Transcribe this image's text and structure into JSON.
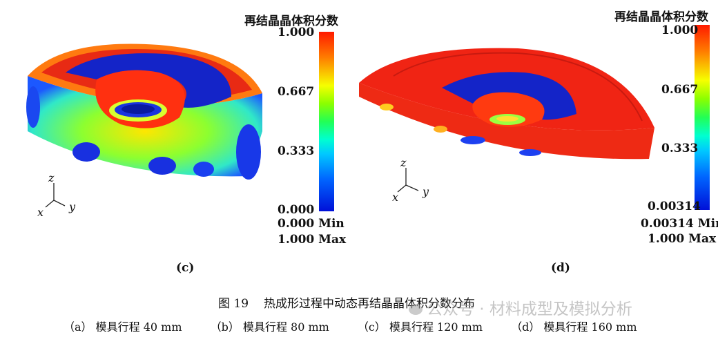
{
  "panels": [
    {
      "id": "c",
      "legend_title": "再结晶晶体积分数",
      "ticks": [
        "1.000",
        "0.667",
        "0.333",
        "0.000"
      ],
      "min_label": "0.000 Min",
      "max_label": "1.000 Max",
      "label": "(c)",
      "axes": {
        "z": "z",
        "x": "x",
        "y": "y"
      }
    },
    {
      "id": "d",
      "legend_title": "再结晶晶体积分数",
      "ticks": [
        "1.000",
        "0.667",
        "0.333",
        "0.00314"
      ],
      "min_label": "0.00314 Min",
      "max_label": "1.000 Max",
      "label": "(d)",
      "axes": {
        "z": "z",
        "x": "x",
        "y": "y"
      }
    }
  ],
  "figure": {
    "number": "图 19",
    "title": "热成形过程中动态再结晶晶体积分数分布",
    "subcaptions": [
      "（a） 模具行程 40 mm",
      "（b） 模具行程 80 mm",
      "（c） 模具行程 120 mm",
      "（d） 模具行程 160 mm"
    ]
  },
  "watermark": {
    "text": "公众号 · 材料成型及模拟分析",
    "icon": "wechat-icon"
  }
}
